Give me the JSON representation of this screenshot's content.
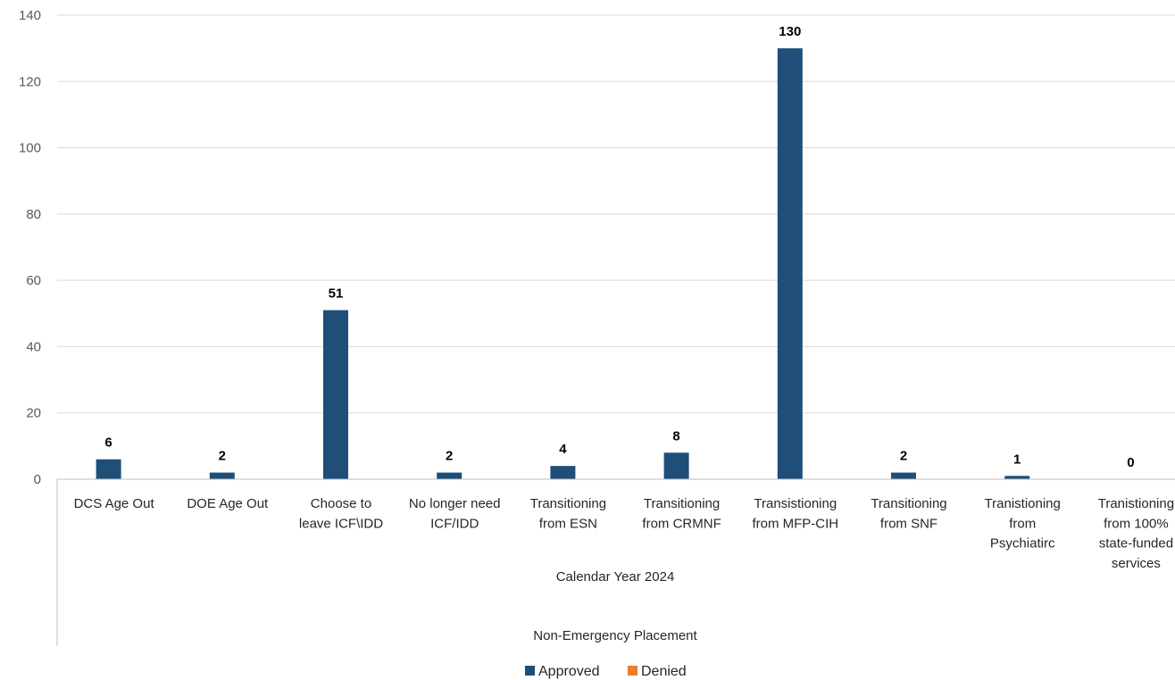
{
  "chart_data": {
    "type": "bar",
    "categories": [
      [
        "DCS Age Out"
      ],
      [
        "DOE Age Out"
      ],
      [
        "Choose to",
        "leave ICF\\IDD"
      ],
      [
        "No longer need",
        "ICF/IDD"
      ],
      [
        "Transitioning",
        "from ESN"
      ],
      [
        "Transitioning",
        "from CRMNF"
      ],
      [
        "Transistioning",
        "from MFP-CIH"
      ],
      [
        "Transitioning",
        "from SNF"
      ],
      [
        "Tranistioning",
        "from",
        "Psychiatirc"
      ],
      [
        "Tranistioning",
        "from 100%",
        "state-funded",
        "services"
      ]
    ],
    "series": [
      {
        "name": "Approved",
        "color": "#1f4e79",
        "values": [
          6,
          2,
          51,
          2,
          4,
          8,
          130,
          2,
          1,
          0
        ]
      },
      {
        "name": "Denied",
        "color": "#ed7d31",
        "values": [
          0,
          0,
          0,
          0,
          0,
          0,
          0,
          0,
          0,
          0
        ]
      }
    ],
    "data_labels": [
      "6",
      "2",
      "51",
      "2",
      "4",
      "8",
      "130",
      "2",
      "1",
      "0"
    ],
    "y_ticks": [
      "0",
      "20",
      "40",
      "60",
      "80",
      "100",
      "120",
      "140"
    ],
    "ylim": [
      0,
      140
    ],
    "group_labels": [
      "Calendar Year 2024",
      "Non-Emergency Placement"
    ],
    "grid": true,
    "legend_position": "bottom"
  }
}
